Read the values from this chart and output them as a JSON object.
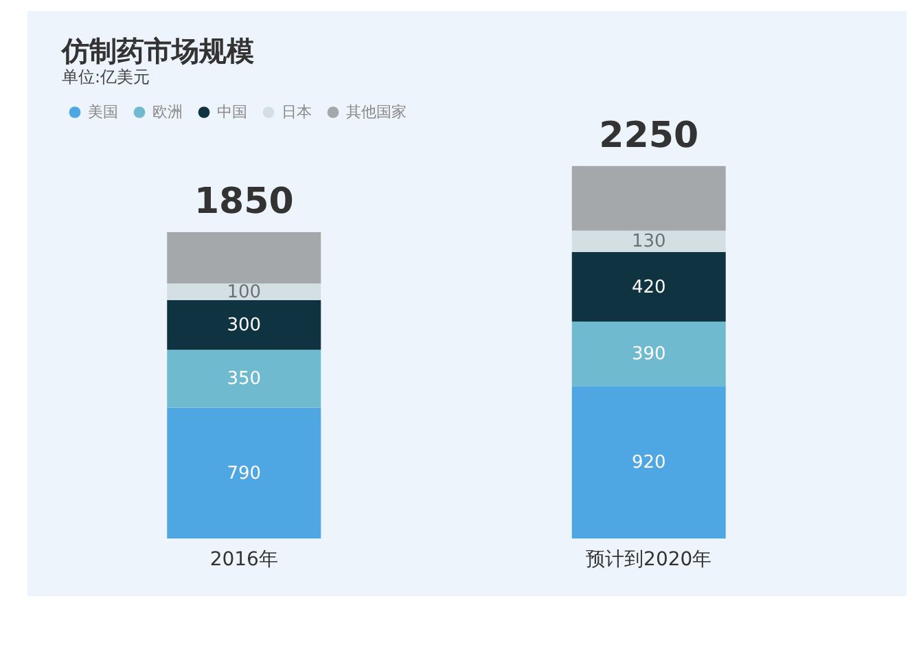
{
  "chart_data": {
    "type": "bar",
    "title": "仿制药市场规模",
    "subtitle": "单位:亿美元",
    "categories": [
      "2016年",
      "预计到2020年"
    ],
    "stacked": true,
    "legend": "top left",
    "series": [
      {
        "name": "美国",
        "color": "#4ea6e2",
        "values": [
          790,
          920
        ],
        "value_labels": [
          "790",
          "920"
        ]
      },
      {
        "name": "欧洲",
        "color": "#6fbace",
        "values": [
          350,
          390
        ],
        "value_labels": [
          "350",
          "390"
        ]
      },
      {
        "name": "中国",
        "color": "#0f3340",
        "values": [
          300,
          420
        ],
        "value_labels": [
          "300",
          "420"
        ]
      },
      {
        "name": "日本",
        "color": "#d3dfe3",
        "values": [
          100,
          130
        ],
        "value_labels": [
          "100",
          "130"
        ]
      },
      {
        "name": "其他国家",
        "color": "#a5a8ab",
        "values": [
          310,
          390
        ],
        "value_labels": [
          null,
          null
        ]
      }
    ],
    "totals": [
      "1850",
      "2250"
    ]
  }
}
